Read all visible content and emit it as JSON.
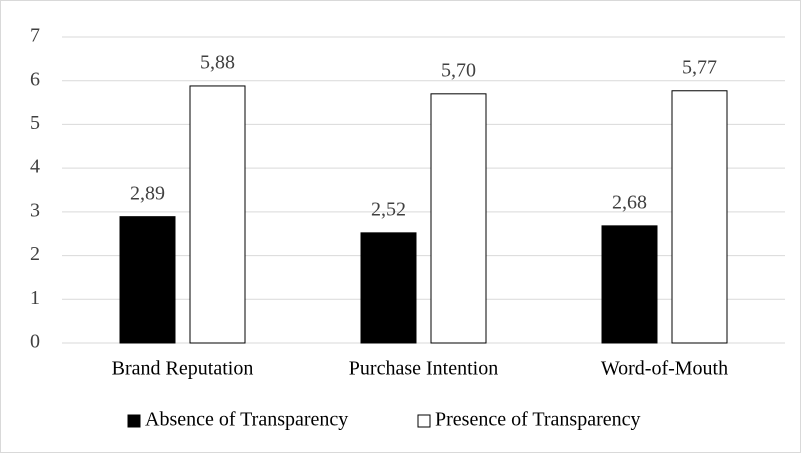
{
  "chart_data": {
    "type": "bar",
    "categories": [
      "Brand Reputation",
      "Purchase Intention",
      "Word-of-Mouth"
    ],
    "series": [
      {
        "name": "Absence of Transparency",
        "color": "#000000",
        "values": [
          2.89,
          2.52,
          2.68
        ],
        "value_labels": [
          "2,89",
          "2,52",
          "2,68"
        ]
      },
      {
        "name": "Presence of Transparency",
        "color": "#ffffff",
        "values": [
          5.88,
          5.7,
          5.77
        ],
        "value_labels": [
          "5,88",
          "5,70",
          "5,77"
        ]
      }
    ],
    "ylim": [
      0,
      7
    ],
    "yticks": [
      0,
      1,
      2,
      3,
      4,
      5,
      6,
      7
    ],
    "grid": true,
    "legend": "bottom"
  }
}
